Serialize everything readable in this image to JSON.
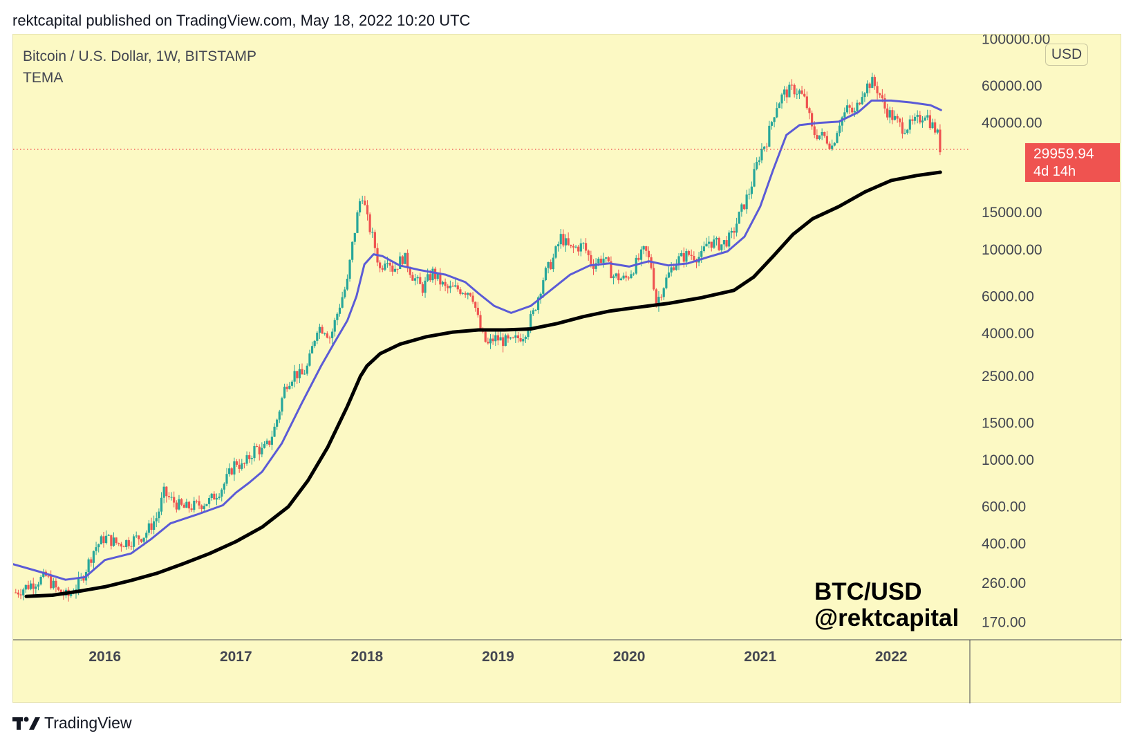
{
  "header": {
    "text": "rektcapital published on TradingView.com, May 18, 2022 10:20 UTC"
  },
  "legend": {
    "symbol": "Bitcoin / U.S. Dollar, 1W, BITSTAMP",
    "indicator": "TEMA"
  },
  "axis": {
    "currency": "USD"
  },
  "price_label": {
    "value": "29959.94",
    "countdown": "4d 14h"
  },
  "watermark": {
    "line1": "BTC/USD",
    "line2": "@rektcapital"
  },
  "footer": {
    "brand": "TradingView"
  },
  "colors": {
    "background": "#fcf9c4",
    "up": "#26a69a",
    "down": "#ef5350",
    "tema_fast": "#5b5bd6",
    "tema_slow": "#000000",
    "price_line": "#ef5350"
  },
  "chart_data": {
    "type": "candlestick",
    "scale": "log",
    "title": "Bitcoin / U.S. Dollar, 1W, BITSTAMP",
    "y_ticks": [
      "100000.00",
      "60000.00",
      "40000.00",
      "15000.00",
      "10000.00",
      "6000.00",
      "4000.00",
      "2500.00",
      "1500.00",
      "1000.00",
      "600.00",
      "400.00",
      "260.00",
      "170.00"
    ],
    "y_tick_values": [
      100000,
      60000,
      40000,
      15000,
      10000,
      6000,
      4000,
      2500,
      1500,
      1000,
      600,
      400,
      260,
      170
    ],
    "ylim": [
      140,
      105000
    ],
    "x_ticks": [
      "2016",
      "2017",
      "2018",
      "2019",
      "2020",
      "2021",
      "2022"
    ],
    "x_tick_values": [
      2016.0,
      2017.0,
      2018.0,
      2019.0,
      2020.0,
      2021.0,
      2022.0
    ],
    "xlim": [
      2015.3,
      2022.6
    ],
    "last_price": 29959.94,
    "price_anchors": [
      [
        2015.32,
        235
      ],
      [
        2015.45,
        260
      ],
      [
        2015.55,
        280
      ],
      [
        2015.65,
        235
      ],
      [
        2015.72,
        225
      ],
      [
        2015.82,
        270
      ],
      [
        2015.92,
        380
      ],
      [
        2016.0,
        430
      ],
      [
        2016.1,
        400
      ],
      [
        2016.2,
        415
      ],
      [
        2016.3,
        440
      ],
      [
        2016.4,
        540
      ],
      [
        2016.45,
        700
      ],
      [
        2016.5,
        650
      ],
      [
        2016.6,
        590
      ],
      [
        2016.7,
        610
      ],
      [
        2016.8,
        640
      ],
      [
        2016.9,
        750
      ],
      [
        2017.0,
        990
      ],
      [
        2017.05,
        920
      ],
      [
        2017.15,
        1150
      ],
      [
        2017.2,
        1100
      ],
      [
        2017.25,
        1200
      ],
      [
        2017.3,
        1450
      ],
      [
        2017.38,
        2300
      ],
      [
        2017.45,
        2600
      ],
      [
        2017.5,
        2500
      ],
      [
        2017.55,
        2800
      ],
      [
        2017.62,
        4300
      ],
      [
        2017.68,
        4200
      ],
      [
        2017.72,
        3800
      ],
      [
        2017.8,
        5700
      ],
      [
        2017.85,
        7000
      ],
      [
        2017.88,
        9800
      ],
      [
        2017.93,
        15000
      ],
      [
        2017.96,
        19000
      ],
      [
        2018.0,
        14000
      ],
      [
        2018.05,
        11000
      ],
      [
        2018.1,
        8000
      ],
      [
        2018.15,
        9500
      ],
      [
        2018.2,
        8000
      ],
      [
        2018.28,
        9300
      ],
      [
        2018.35,
        7500
      ],
      [
        2018.42,
        6500
      ],
      [
        2018.5,
        7800
      ],
      [
        2018.6,
        6500
      ],
      [
        2018.7,
        6500
      ],
      [
        2018.8,
        6300
      ],
      [
        2018.87,
        4000
      ],
      [
        2018.92,
        3500
      ],
      [
        2018.97,
        3800
      ],
      [
        2019.1,
        3600
      ],
      [
        2019.2,
        4000
      ],
      [
        2019.27,
        5000
      ],
      [
        2019.35,
        7500
      ],
      [
        2019.42,
        9000
      ],
      [
        2019.48,
        11500
      ],
      [
        2019.55,
        10000
      ],
      [
        2019.65,
        10500
      ],
      [
        2019.72,
        8500
      ],
      [
        2019.8,
        9200
      ],
      [
        2019.88,
        7500
      ],
      [
        2019.97,
        7200
      ],
      [
        2020.05,
        8500
      ],
      [
        2020.12,
        10000
      ],
      [
        2020.18,
        8000
      ],
      [
        2020.2,
        5400
      ],
      [
        2020.25,
        6500
      ],
      [
        2020.35,
        8800
      ],
      [
        2020.45,
        9500
      ],
      [
        2020.55,
        9200
      ],
      [
        2020.6,
        11000
      ],
      [
        2020.7,
        10500
      ],
      [
        2020.78,
        11500
      ],
      [
        2020.85,
        15000
      ],
      [
        2020.92,
        19000
      ],
      [
        2021.0,
        29000
      ],
      [
        2021.05,
        33000
      ],
      [
        2021.12,
        48000
      ],
      [
        2021.18,
        55000
      ],
      [
        2021.25,
        58000
      ],
      [
        2021.3,
        56000
      ],
      [
        2021.35,
        50000
      ],
      [
        2021.4,
        36000
      ],
      [
        2021.45,
        35000
      ],
      [
        2021.5,
        34000
      ],
      [
        2021.55,
        31000
      ],
      [
        2021.6,
        40000
      ],
      [
        2021.67,
        47000
      ],
      [
        2021.72,
        44000
      ],
      [
        2021.78,
        57000
      ],
      [
        2021.85,
        63000
      ],
      [
        2021.9,
        57000
      ],
      [
        2021.95,
        47000
      ],
      [
        2022.02,
        42000
      ],
      [
        2022.08,
        38000
      ],
      [
        2022.15,
        39000
      ],
      [
        2022.22,
        42000
      ],
      [
        2022.26,
        45000
      ],
      [
        2022.3,
        40000
      ],
      [
        2022.35,
        36000
      ],
      [
        2022.375,
        29959.94
      ]
    ],
    "series": [
      {
        "name": "TEMA (fast)",
        "color": "#5b5bd6",
        "points": [
          [
            2015.3,
            320
          ],
          [
            2015.5,
            295
          ],
          [
            2015.7,
            270
          ],
          [
            2015.85,
            278
          ],
          [
            2016.0,
            335
          ],
          [
            2016.2,
            360
          ],
          [
            2016.35,
            420
          ],
          [
            2016.5,
            500
          ],
          [
            2016.7,
            550
          ],
          [
            2016.9,
            610
          ],
          [
            2017.0,
            700
          ],
          [
            2017.1,
            780
          ],
          [
            2017.2,
            880
          ],
          [
            2017.35,
            1200
          ],
          [
            2017.5,
            1850
          ],
          [
            2017.65,
            2800
          ],
          [
            2017.75,
            3600
          ],
          [
            2017.85,
            4600
          ],
          [
            2017.92,
            6000
          ],
          [
            2017.98,
            8500
          ],
          [
            2018.05,
            9500
          ],
          [
            2018.12,
            9300
          ],
          [
            2018.25,
            8400
          ],
          [
            2018.4,
            8000
          ],
          [
            2018.6,
            7600
          ],
          [
            2018.75,
            7000
          ],
          [
            2018.85,
            6200
          ],
          [
            2018.97,
            5400
          ],
          [
            2019.1,
            5000
          ],
          [
            2019.25,
            5400
          ],
          [
            2019.4,
            6400
          ],
          [
            2019.55,
            7600
          ],
          [
            2019.7,
            8400
          ],
          [
            2019.85,
            8600
          ],
          [
            2020.0,
            8300
          ],
          [
            2020.15,
            8800
          ],
          [
            2020.3,
            8400
          ],
          [
            2020.45,
            8600
          ],
          [
            2020.6,
            9200
          ],
          [
            2020.75,
            9800
          ],
          [
            2020.88,
            11500
          ],
          [
            2021.0,
            16000
          ],
          [
            2021.1,
            24000
          ],
          [
            2021.2,
            35000
          ],
          [
            2021.3,
            39000
          ],
          [
            2021.45,
            40000
          ],
          [
            2021.6,
            40500
          ],
          [
            2021.75,
            45000
          ],
          [
            2021.85,
            51000
          ],
          [
            2022.0,
            51000
          ],
          [
            2022.15,
            50000
          ],
          [
            2022.3,
            48500
          ],
          [
            2022.38,
            46000
          ]
        ]
      },
      {
        "name": "TEMA (slow)",
        "color": "#000000",
        "points": [
          [
            2015.4,
            225
          ],
          [
            2015.6,
            228
          ],
          [
            2015.8,
            238
          ],
          [
            2016.0,
            250
          ],
          [
            2016.2,
            268
          ],
          [
            2016.4,
            290
          ],
          [
            2016.6,
            322
          ],
          [
            2016.8,
            360
          ],
          [
            2017.0,
            410
          ],
          [
            2017.2,
            480
          ],
          [
            2017.4,
            600
          ],
          [
            2017.55,
            800
          ],
          [
            2017.7,
            1150
          ],
          [
            2017.85,
            1800
          ],
          [
            2017.95,
            2500
          ],
          [
            2018.0,
            2800
          ],
          [
            2018.1,
            3200
          ],
          [
            2018.25,
            3550
          ],
          [
            2018.45,
            3850
          ],
          [
            2018.65,
            4050
          ],
          [
            2018.85,
            4150
          ],
          [
            2019.05,
            4150
          ],
          [
            2019.25,
            4200
          ],
          [
            2019.45,
            4450
          ],
          [
            2019.65,
            4800
          ],
          [
            2019.85,
            5100
          ],
          [
            2020.05,
            5300
          ],
          [
            2020.3,
            5550
          ],
          [
            2020.55,
            5900
          ],
          [
            2020.8,
            6400
          ],
          [
            2020.95,
            7400
          ],
          [
            2021.1,
            9300
          ],
          [
            2021.25,
            11800
          ],
          [
            2021.4,
            14000
          ],
          [
            2021.6,
            16000
          ],
          [
            2021.8,
            18800
          ],
          [
            2022.0,
            21300
          ],
          [
            2022.2,
            22500
          ],
          [
            2022.375,
            23300
          ]
        ]
      }
    ]
  }
}
